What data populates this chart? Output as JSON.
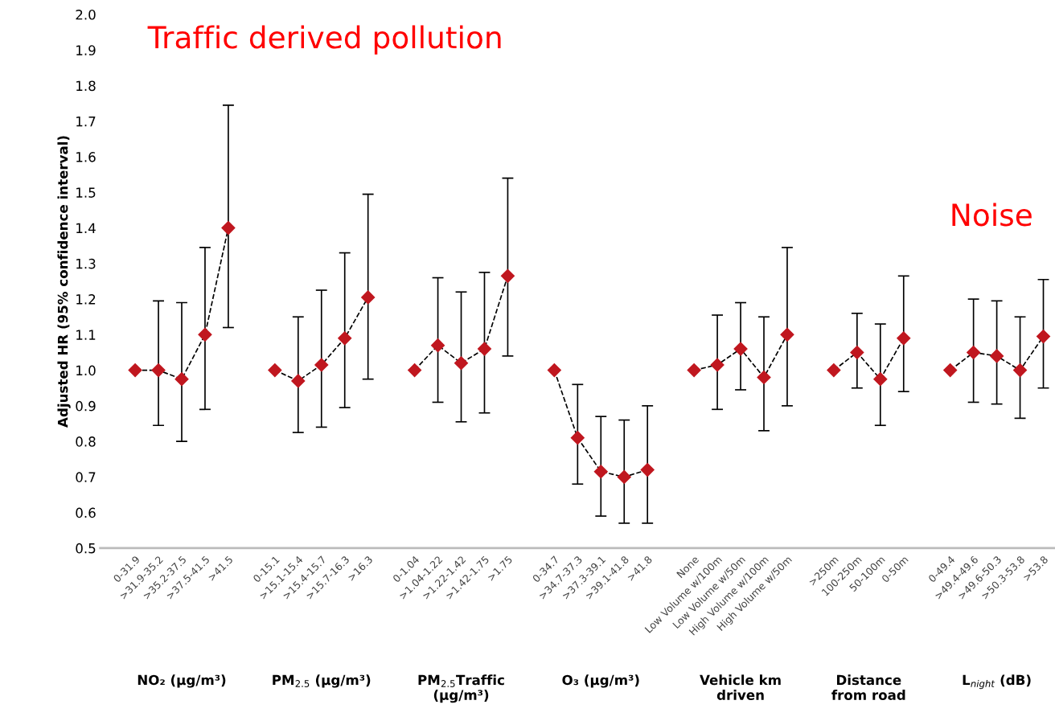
{
  "chart_data": {
    "type": "line",
    "ylabel": "Adjusted HR (95% confidence interval)",
    "categories": [
      null,
      "0-31.9",
      ">31.9-35.2",
      ">35.2-37.5",
      ">37.5-41.5",
      ">41.5",
      null,
      "0-15.1",
      ">15.1-15.4",
      ">15.4-15.7",
      ">15.7-16.3",
      ">16.3",
      null,
      "0-1.04",
      ">1.04-1.22",
      ">1.22-1.42",
      ">1.42-1.75",
      ">1.75",
      null,
      "0-34.7",
      ">34.7-37.3",
      ">37.3-39.1",
      ">39.1-41.8",
      ">41.8",
      null,
      "None",
      "Low Volume w/100m",
      "Low Volume w/50m",
      "High Volume w/100m",
      "High Volume w/50m",
      null,
      ">250m",
      "100-250m",
      "50-100m",
      "0-50m",
      null,
      "0-49.4",
      ">49.4-49.6",
      ">49.6-50.3",
      ">50.3-53.8",
      ">53.8"
    ],
    "series": [
      {
        "color": "#c0171f",
        "values": [
          null,
          1.0,
          1.0,
          0.975,
          1.1,
          1.4,
          null,
          1.0,
          0.97,
          1.015,
          1.09,
          1.205,
          null,
          1.0,
          1.07,
          1.02,
          1.06,
          1.265,
          null,
          1.0,
          0.81,
          0.715,
          0.7,
          0.72,
          null,
          1.0,
          1.015,
          1.06,
          0.98,
          1.1,
          null,
          1.0,
          1.05,
          0.975,
          1.09,
          null,
          1.0,
          1.05,
          1.04,
          1.0,
          1.095
        ],
        "errors": [
          null,
          null,
          [
            0.845,
            1.195
          ],
          [
            0.8,
            1.19
          ],
          [
            0.89,
            1.345
          ],
          [
            1.12,
            1.745
          ],
          null,
          null,
          [
            0.825,
            1.15
          ],
          [
            0.84,
            1.225
          ],
          [
            0.895,
            1.33
          ],
          [
            0.975,
            1.495
          ],
          null,
          null,
          [
            0.91,
            1.26
          ],
          [
            0.855,
            1.22
          ],
          [
            0.88,
            1.275
          ],
          [
            1.04,
            1.54
          ],
          null,
          null,
          [
            0.68,
            0.96
          ],
          [
            0.59,
            0.87
          ],
          [
            0.57,
            0.86
          ],
          [
            0.57,
            0.9
          ],
          null,
          null,
          [
            0.89,
            1.155
          ],
          [
            0.945,
            1.19
          ],
          [
            0.83,
            1.15
          ],
          [
            0.9,
            1.345
          ],
          null,
          null,
          [
            0.95,
            1.16
          ],
          [
            0.845,
            1.13
          ],
          [
            0.94,
            1.265
          ],
          null,
          null,
          [
            0.91,
            1.2
          ],
          [
            0.905,
            1.195
          ],
          [
            0.865,
            1.15
          ],
          [
            0.95,
            1.255
          ]
        ]
      }
    ],
    "ylim": [
      0.5,
      2.0
    ],
    "yticks": [
      0.5,
      0.6,
      0.7,
      0.8,
      0.9,
      {
        "value": 1,
        "label": "1.0"
      },
      1.1,
      1.2,
      1.3,
      1.4,
      1.5,
      1.6,
      1.7,
      1.8,
      1.9,
      {
        "value": 2,
        "label": "2.0"
      }
    ],
    "marker": "diamond",
    "line_style": "dashed",
    "grid": false,
    "annotations": [
      "Traffic derived pollution",
      "Noise",
      "NO₂ (μg/m³)",
      "PM$_{2.5}$ (μg/m³)",
      "PM$_{2.5}$Traffic\n(μg/m³)",
      "O₃ (μg/m³)",
      "Vehicle km\ndriven",
      "Distance\nfrom road",
      "L$_{night}$ (dB)"
    ]
  }
}
